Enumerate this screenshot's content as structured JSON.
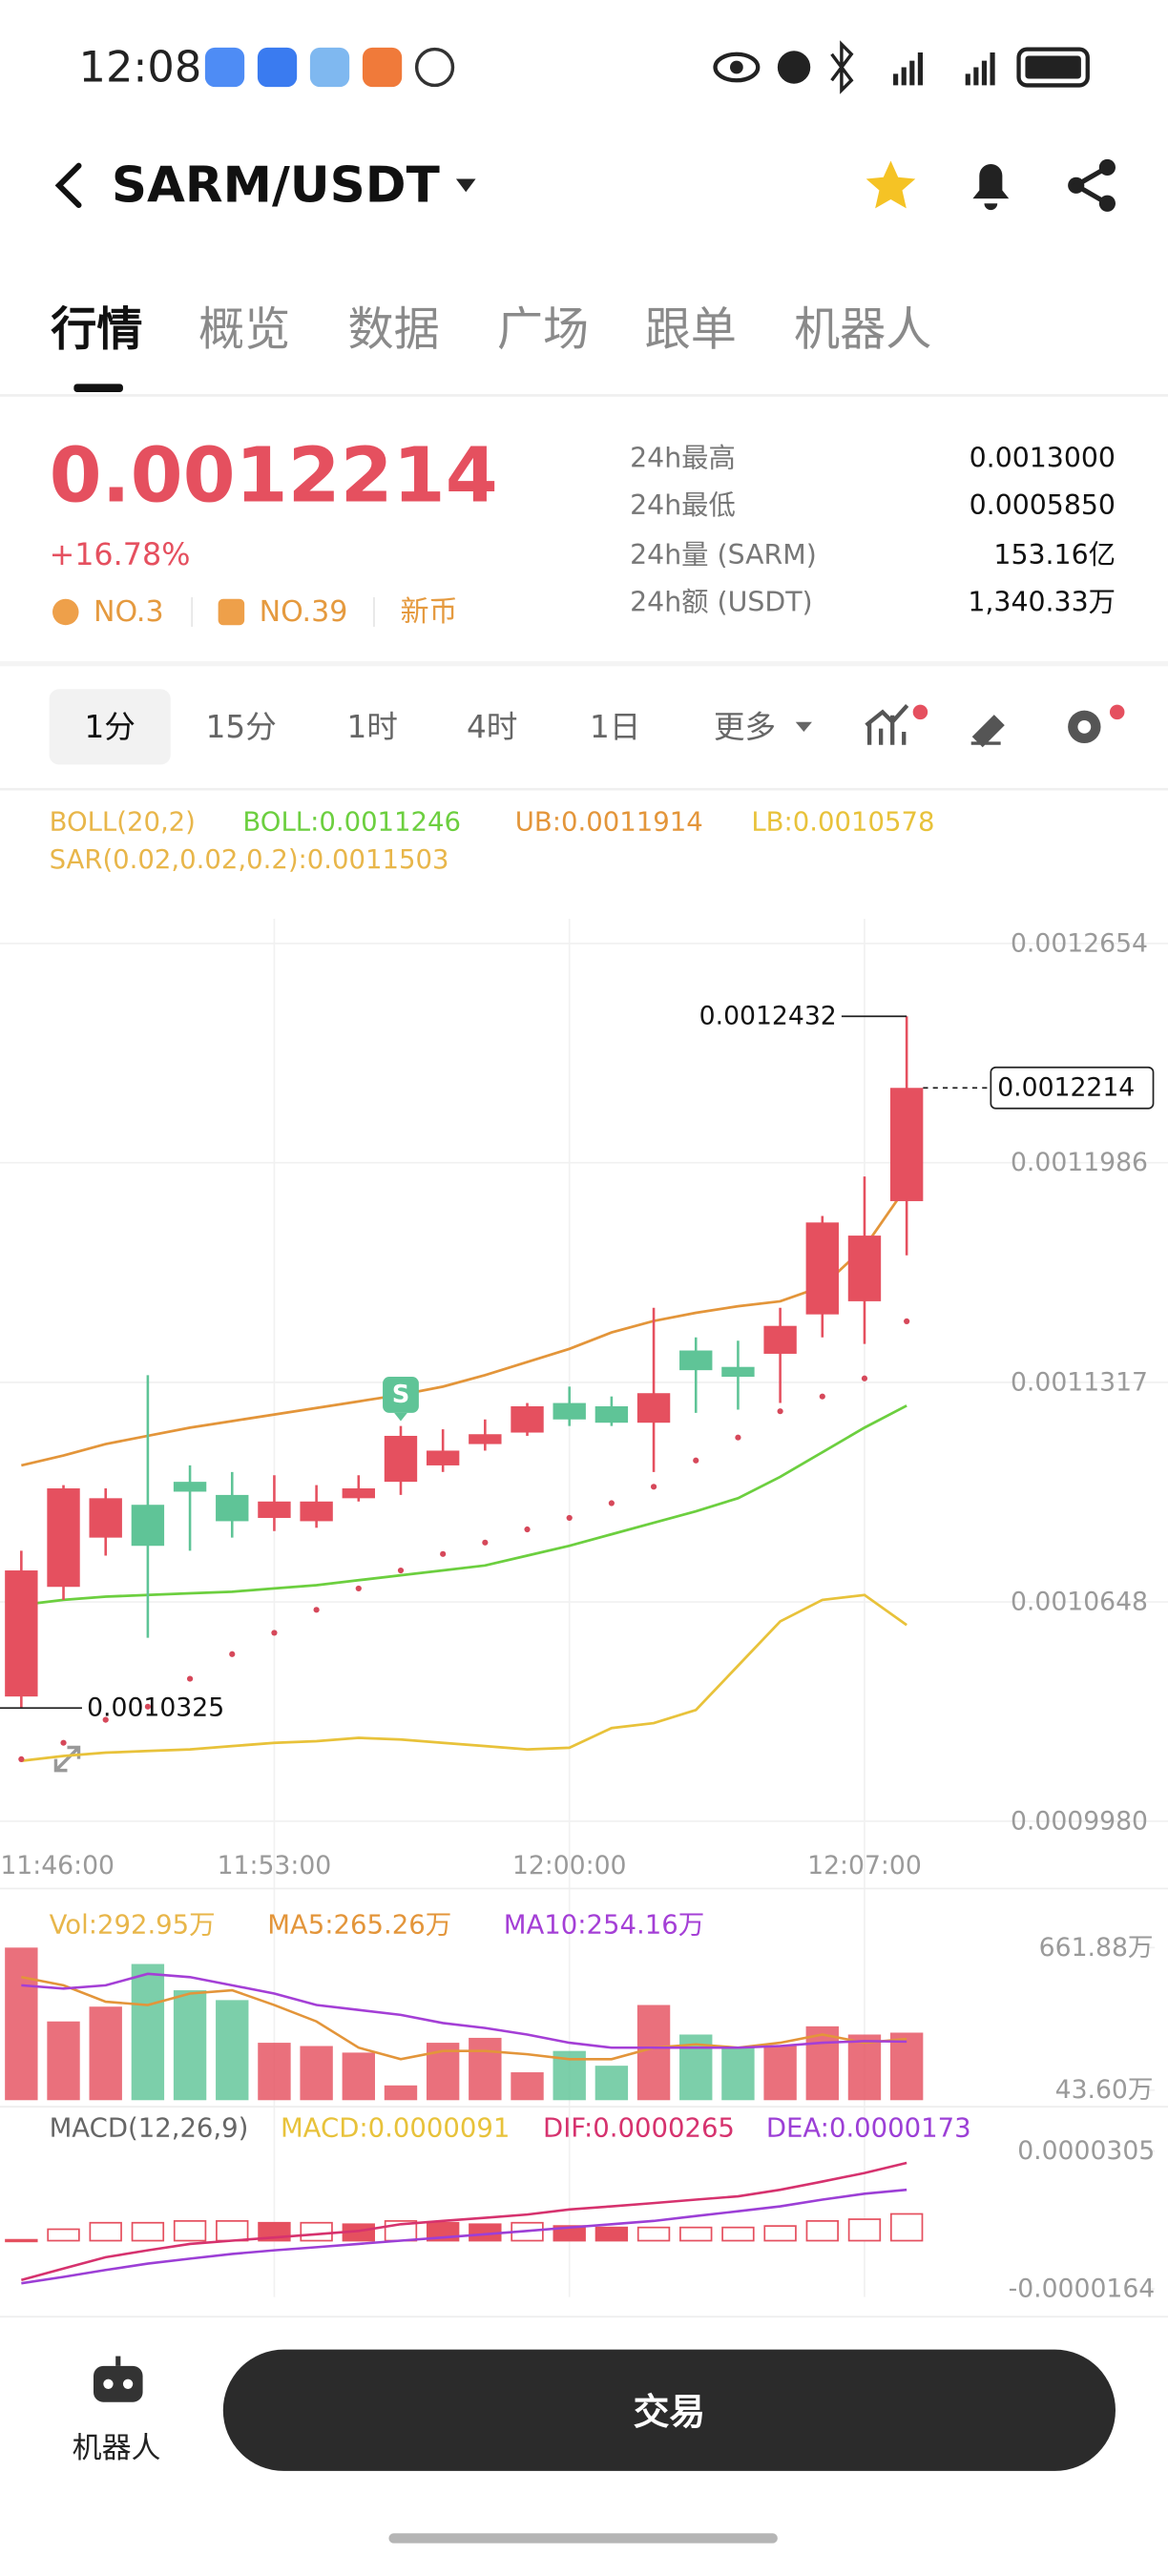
{
  "status_bar": {
    "time": "12:08"
  },
  "header": {
    "title": "SARM/USDT"
  },
  "tabs": [
    "行情",
    "概览",
    "数据",
    "广场",
    "跟单",
    "机器人"
  ],
  "ticker": {
    "price": "0.0012214",
    "change": "+16.78%",
    "tags": [
      "NO.3",
      "NO.39",
      "新币"
    ],
    "stats": [
      {
        "label": "24h最高",
        "value": "0.0013000"
      },
      {
        "label": "24h最低",
        "value": "0.0005850"
      },
      {
        "label": "24h量 (SARM)",
        "value": "153.16亿"
      },
      {
        "label": "24h额 (USDT)",
        "value": "1,340.33万"
      }
    ]
  },
  "intervals": [
    "1分",
    "15分",
    "1时",
    "4时",
    "1日",
    "更多"
  ],
  "chart_data": [
    {
      "type": "candlestick",
      "indicator": "BOLL(20,2)",
      "marker": "S",
      "x": [
        "11:47:00",
        "11:48:00",
        "11:49:00",
        "11:50:00",
        "11:51:00",
        "11:52:00",
        "11:53:00",
        "11:54:00",
        "11:55:00",
        "11:56:00",
        "11:57:00",
        "11:58:00",
        "11:59:00",
        "12:00:00",
        "12:01:00",
        "12:02:00",
        "12:03:00",
        "12:04:00",
        "12:05:00",
        "12:06:00",
        "12:07:00",
        "12:08:00"
      ],
      "xticks": [
        "11:46:00",
        "11:53:00",
        "12:00:00",
        "12:07:00"
      ],
      "open": [
        0.001036,
        0.0010694,
        0.0010844,
        0.0010944,
        0.0011014,
        0.0010974,
        0.0010904,
        0.0010894,
        0.0010964,
        0.0011014,
        0.0011064,
        0.0011129,
        0.0011164,
        0.0011254,
        0.0011244,
        0.0011194,
        0.0011414,
        0.0011364,
        0.0011404,
        0.0011524,
        0.0011564,
        0.0011869
      ],
      "high": [
        0.0010804,
        0.0011004,
        0.0010994,
        0.0011339,
        0.0011064,
        0.0011044,
        0.0011034,
        0.0011004,
        0.0011034,
        0.0011184,
        0.0011174,
        0.0011204,
        0.0011254,
        0.0011304,
        0.0011274,
        0.0011544,
        0.0011454,
        0.0011444,
        0.0011544,
        0.0011824,
        0.0011944,
        0.0012432
      ],
      "low": [
        0.0010325,
        0.0010654,
        0.0010789,
        0.0010539,
        0.0010804,
        0.0010844,
        0.0010864,
        0.0010874,
        0.0010954,
        0.0010974,
        0.0011044,
        0.0011109,
        0.0011154,
        0.0011184,
        0.0011184,
        0.0011044,
        0.0011224,
        0.0011234,
        0.0011254,
        0.0011454,
        0.0011434,
        0.0011704
      ],
      "close": [
        0.0010744,
        0.0010994,
        0.0010964,
        0.0010819,
        0.0010984,
        0.0010894,
        0.0010954,
        0.0010954,
        0.0010994,
        0.0011154,
        0.0011109,
        0.0011159,
        0.0011244,
        0.0011204,
        0.0011194,
        0.0011284,
        0.0011354,
        0.0011334,
        0.0011489,
        0.0011804,
        0.0011764,
        0.0012214
      ],
      "up_color": "#e5505f",
      "down_color": "#5fc497",
      "series": [
        {
          "legend": "BOLL:0.0011246",
          "color": "#6ccf3f",
          "style": "line",
          "values": [
            0.0010639,
            0.0010654,
            0.0010664,
            0.0010669,
            0.0010674,
            0.0010679,
            0.0010689,
            0.0010699,
            0.0010714,
            0.0010729,
            0.0010744,
            0.0010759,
            0.0010789,
            0.0010819,
            0.0010854,
            0.0010889,
            0.0010924,
            0.0010964,
            0.0011029,
            0.0011104,
            0.0011179,
            0.0011246
          ]
        },
        {
          "legend": "UB:0.0011914",
          "color": "#e3953a",
          "style": "line",
          "values": [
            0.0011064,
            0.0011094,
            0.0011129,
            0.0011154,
            0.0011179,
            0.0011199,
            0.0011219,
            0.0011239,
            0.0011259,
            0.0011279,
            0.0011304,
            0.0011339,
            0.0011379,
            0.0011419,
            0.0011469,
            0.0011504,
            0.0011529,
            0.0011549,
            0.0011564,
            0.0011609,
            0.0011729,
            0.0011914
          ]
        },
        {
          "legend": "LB:0.0010578",
          "color": "#e8c23a",
          "style": "line",
          "values": [
            0.0010164,
            0.0010179,
            0.0010189,
            0.0010194,
            0.0010199,
            0.0010209,
            0.0010219,
            0.0010224,
            0.0010234,
            0.0010229,
            0.0010219,
            0.0010209,
            0.0010199,
            0.0010204,
            0.0010264,
            0.0010279,
            0.0010319,
            0.0010454,
            0.0010589,
            0.0010654,
            0.0010669,
            0.0010578
          ]
        },
        {
          "legend": "SAR(0.02,0.02,0.2):0.0011503",
          "color": "#d6485a",
          "style": "dots",
          "values": [
            0.0010169,
            0.0010219,
            0.0010289,
            0.0010329,
            0.0010414,
            0.0010489,
            0.0010554,
            0.0010624,
            0.0010689,
            0.0010744,
            0.0010794,
            0.0010829,
            0.0010869,
            0.0010904,
            0.0010949,
            0.0010999,
            0.0011079,
            0.0011149,
            0.0011229,
            0.0011274,
            0.0011329,
            0.0011503
          ]
        }
      ],
      "ylim": [
        0.000998,
        0.0012654
      ],
      "yticks": [
        0.0012654,
        0.0011986,
        0.0011317,
        0.0010648,
        {
          "value": 0.000998,
          "label": "0.0009980"
        }
      ],
      "grid": true
    },
    {
      "type": "bar",
      "series": [
        {
          "legend": "Vol:292.95万",
          "style": "bars",
          "values": [
            661.88,
            341.6,
            405.7,
            590.7,
            476.8,
            434.1,
            249.1,
            234.9,
            206.4,
            64.1,
            249.1,
            270.4,
            121,
            213.5,
            149.5,
            412.8,
            284.7,
            227.7,
            234.9,
            320.3,
            284.7,
            292.95
          ]
        },
        {
          "legend": "MA5:265.26万",
          "color": "#e3953a",
          "style": "line",
          "values": [
            533.8,
            498.2,
            427,
            412.8,
            462.6,
            476.8,
            412.8,
            341.6,
            227.7,
            177.9,
            213.5,
            213.5,
            199.3,
            177.9,
            177.9,
            227.7,
            242,
            227.7,
            249.1,
            284.7,
            249.1,
            265.26
          ]
        },
        {
          "legend": "MA10:254.16万",
          "color": "#a43fd6",
          "style": "line",
          "values": [
            498.2,
            484,
            498.2,
            548,
            533.8,
            498.2,
            462.6,
            412.8,
            391.4,
            370.1,
            334.5,
            313.1,
            284.7,
            249.1,
            227.7,
            227.7,
            227.7,
            227.7,
            234.9,
            249.1,
            256.2,
            254.16
          ]
        }
      ],
      "ylim": [
        0,
        661.88
      ],
      "yticks": [
        {
          "value": 661.88,
          "label": "661.88万"
        },
        {
          "value": 43.6,
          "label": "43.60万"
        }
      ]
    },
    {
      "type": "macd",
      "indicator": "MACD(12,26,9)",
      "series": [
        {
          "legend": "MACD:0.0000091",
          "color": "#e5505f",
          "style": "bars",
          "values": [
            3e-07,
            3.9e-06,
            6.1e-06,
            6.1e-06,
            6.7e-06,
            6.7e-06,
            6.1e-06,
            6.1e-06,
            5.6e-06,
            6.7e-06,
            6.1e-06,
            5.6e-06,
            6.1e-06,
            5e-06,
            4.5e-06,
            4.5e-06,
            4.5e-06,
            4.5e-06,
            5e-06,
            6.7e-06,
            7.3e-06,
            9.1e-06
          ]
        },
        {
          "legend": "DIF:0.0000265",
          "color": "#d6326e",
          "style": "line",
          "values": [
            -1.34e-05,
            -9.5e-06,
            -5.6e-06,
            -3.3e-06,
            -1.1e-06,
            0,
            1.1e-06,
            2.2e-06,
            3.3e-06,
            5.6e-06,
            6.7e-06,
            7.8e-06,
            8.9e-06,
            1.06e-05,
            1.17e-05,
            1.28e-05,
            1.4e-05,
            1.51e-05,
            1.73e-05,
            2.01e-05,
            2.3e-05,
            2.65e-05
          ]
        },
        {
          "legend": "DEA:0.0000173",
          "color": "#9c3fd6",
          "style": "line",
          "values": [
            -1.45e-05,
            -1.23e-05,
            -1e-05,
            -7.8e-06,
            -6.1e-06,
            -4.5e-06,
            -3.3e-06,
            -2.2e-06,
            -1.1e-06,
            0,
            1.1e-06,
            2.2e-06,
            3.3e-06,
            4.5e-06,
            5.6e-06,
            6.7e-06,
            8.4e-06,
            1e-05,
            1.17e-05,
            1.4e-05,
            1.6e-05,
            1.73e-05
          ]
        }
      ],
      "ylim": [
        -1.64e-05,
        3.05e-05
      ],
      "yticks": [
        3.05e-05,
        -1.64e-05
      ]
    }
  ],
  "bottom_bar": {
    "robot": "机器人",
    "trade": "交易"
  }
}
